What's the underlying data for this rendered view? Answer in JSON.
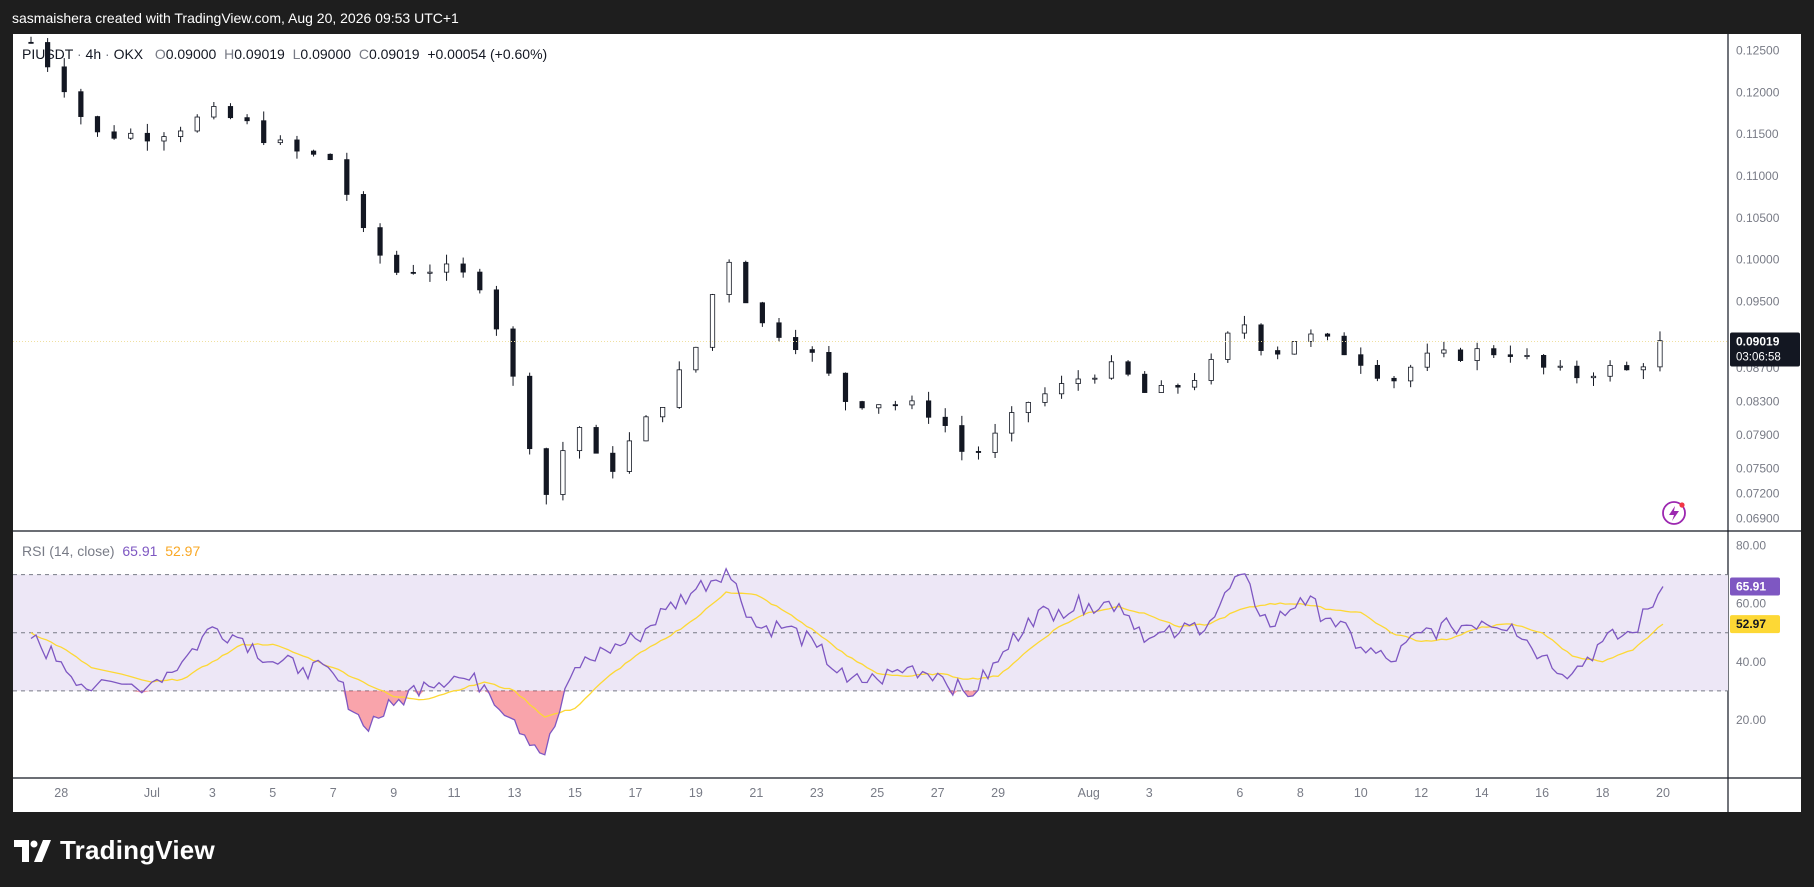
{
  "header": {
    "credit": "sasmaishera created with TradingView.com, Aug 20, 2026 09:53 UTC+1"
  },
  "legend": {
    "symbol": "PIUSDT",
    "timeframe": "4h",
    "exchange": "OKX",
    "open_label": "O",
    "open": "0.09000",
    "high_label": "H",
    "high": "0.09019",
    "low_label": "L",
    "low": "0.09000",
    "close_label": "C",
    "close": "0.09019",
    "change": "+0.00054 (+0.60%)"
  },
  "rsi_legend": {
    "name": "RSI (14, close)",
    "rsi_value": "65.91",
    "ma_value": "52.97"
  },
  "price_tag": {
    "price": "0.09019",
    "countdown": "03:06:58"
  },
  "footer": {
    "brand": "TradingView"
  },
  "colors": {
    "rsi_line": "#7e57c2",
    "rsi_ma": "#fdd835",
    "rsi_band": "#ede7f6",
    "oversold_fill": "#f23645",
    "candle_up": "#ffffff",
    "candle_down": "#131722"
  },
  "chart_data": [
    {
      "type": "candlestick",
      "title": "PIUSDT · 4h · OKX",
      "y_ticks": [
        "0.12500",
        "0.12000",
        "0.11500",
        "0.11000",
        "0.10500",
        "0.10000",
        "0.09500",
        "0.09000",
        "0.08700",
        "0.08300",
        "0.07900",
        "0.07500",
        "0.07200",
        "0.06900"
      ],
      "x_ticks": [
        "28",
        "Jul",
        "3",
        "5",
        "7",
        "9",
        "11",
        "13",
        "15",
        "17",
        "19",
        "21",
        "23",
        "25",
        "27",
        "29",
        "Aug",
        "3",
        "6",
        "8",
        "10",
        "12",
        "14",
        "16",
        "18",
        "20"
      ],
      "ylim": [
        0.0675,
        0.127
      ],
      "close_path": [
        {
          "x": "Jun 27",
          "y": 0.126
        },
        {
          "x": "Jun 28",
          "y": 0.1215
        },
        {
          "x": "Jun 29",
          "y": 0.115
        },
        {
          "x": "Jul 1",
          "y": 0.115
        },
        {
          "x": "Jul 2",
          "y": 0.116
        },
        {
          "x": "Jul 3",
          "y": 0.1175
        },
        {
          "x": "Jul 4",
          "y": 0.1165
        },
        {
          "x": "Jul 5",
          "y": 0.114
        },
        {
          "x": "Jul 6",
          "y": 0.1125
        },
        {
          "x": "Jul 7",
          "y": 0.112
        },
        {
          "x": "Jul 8",
          "y": 0.103
        },
        {
          "x": "Jul 9",
          "y": 0.0985
        },
        {
          "x": "Jul 10",
          "y": 0.099
        },
        {
          "x": "Jul 11",
          "y": 0.0985
        },
        {
          "x": "Jul 12",
          "y": 0.097
        },
        {
          "x": "Jul 13",
          "y": 0.085
        },
        {
          "x": "Jul 14",
          "y": 0.0715
        },
        {
          "x": "Jul 15",
          "y": 0.081
        },
        {
          "x": "Jul 16",
          "y": 0.074
        },
        {
          "x": "Jul 17",
          "y": 0.079
        },
        {
          "x": "Jul 18",
          "y": 0.0835
        },
        {
          "x": "Jul 19",
          "y": 0.0895
        },
        {
          "x": "Jul 20",
          "y": 0.101
        },
        {
          "x": "Jul 21",
          "y": 0.0925
        },
        {
          "x": "Jul 22",
          "y": 0.091
        },
        {
          "x": "Jul 23",
          "y": 0.088
        },
        {
          "x": "Jul 24",
          "y": 0.083
        },
        {
          "x": "Jul 25",
          "y": 0.083
        },
        {
          "x": "Jul 26",
          "y": 0.0825
        },
        {
          "x": "Jul 27",
          "y": 0.0815
        },
        {
          "x": "Jul 28",
          "y": 0.076
        },
        {
          "x": "Jul 29",
          "y": 0.079
        },
        {
          "x": "Jul 30",
          "y": 0.083
        },
        {
          "x": "Jul 31",
          "y": 0.0845
        },
        {
          "x": "Aug 1",
          "y": 0.0865
        },
        {
          "x": "Aug 2",
          "y": 0.087
        },
        {
          "x": "Aug 3",
          "y": 0.0835
        },
        {
          "x": "Aug 4",
          "y": 0.085
        },
        {
          "x": "Aug 5",
          "y": 0.087
        },
        {
          "x": "Aug 6",
          "y": 0.093
        },
        {
          "x": "Aug 7",
          "y": 0.0885
        },
        {
          "x": "Aug 8",
          "y": 0.091
        },
        {
          "x": "Aug 9",
          "y": 0.09
        },
        {
          "x": "Aug 10",
          "y": 0.088
        },
        {
          "x": "Aug 11",
          "y": 0.0855
        },
        {
          "x": "Aug 12",
          "y": 0.088
        },
        {
          "x": "Aug 13",
          "y": 0.0885
        },
        {
          "x": "Aug 14",
          "y": 0.089
        },
        {
          "x": "Aug 15",
          "y": 0.089
        },
        {
          "x": "Aug 16",
          "y": 0.087
        },
        {
          "x": "Aug 17",
          "y": 0.086
        },
        {
          "x": "Aug 18",
          "y": 0.087
        },
        {
          "x": "Aug 19",
          "y": 0.0865
        },
        {
          "x": "Aug 20",
          "y": 0.0902
        }
      ],
      "last_price": 0.09019
    },
    {
      "type": "line",
      "title": "RSI (14, close)",
      "y_ticks": [
        "80.00",
        "60.00",
        "40.00",
        "20.00"
      ],
      "ylim": [
        0,
        85
      ],
      "bands": {
        "upper": 70,
        "middle": 50,
        "lower": 30
      },
      "series": [
        {
          "name": "RSI",
          "values": [
            {
              "x": "Jun 27",
              "y": 48
            },
            {
              "x": "Jun 28",
              "y": 40
            },
            {
              "x": "Jun 29",
              "y": 30
            },
            {
              "x": "Jul 1",
              "y": 33
            },
            {
              "x": "Jul 2",
              "y": 40
            },
            {
              "x": "Jul 3",
              "y": 52
            },
            {
              "x": "Jul 4",
              "y": 48
            },
            {
              "x": "Jul 5",
              "y": 40
            },
            {
              "x": "Jul 6",
              "y": 38
            },
            {
              "x": "Jul 7",
              "y": 36
            },
            {
              "x": "Jul 8",
              "y": 18
            },
            {
              "x": "Jul 9",
              "y": 25
            },
            {
              "x": "Jul 10",
              "y": 33
            },
            {
              "x": "Jul 11",
              "y": 35
            },
            {
              "x": "Jul 12",
              "y": 32
            },
            {
              "x": "Jul 13",
              "y": 20
            },
            {
              "x": "Jul 14",
              "y": 8
            },
            {
              "x": "Jul 15",
              "y": 38
            },
            {
              "x": "Jul 16",
              "y": 44
            },
            {
              "x": "Jul 17",
              "y": 48
            },
            {
              "x": "Jul 18",
              "y": 58
            },
            {
              "x": "Jul 19",
              "y": 65
            },
            {
              "x": "Jul 20",
              "y": 72
            },
            {
              "x": "Jul 21",
              "y": 52
            },
            {
              "x": "Jul 22",
              "y": 52
            },
            {
              "x": "Jul 23",
              "y": 45
            },
            {
              "x": "Jul 24",
              "y": 33
            },
            {
              "x": "Jul 25",
              "y": 34
            },
            {
              "x": "Jul 26",
              "y": 38
            },
            {
              "x": "Jul 27",
              "y": 36
            },
            {
              "x": "Jul 28",
              "y": 28
            },
            {
              "x": "Jul 29",
              "y": 40
            },
            {
              "x": "Jul 30",
              "y": 55
            },
            {
              "x": "Jul 31",
              "y": 58
            },
            {
              "x": "Aug 1",
              "y": 60
            },
            {
              "x": "Aug 2",
              "y": 60
            },
            {
              "x": "Aug 3",
              "y": 48
            },
            {
              "x": "Aug 4",
              "y": 50
            },
            {
              "x": "Aug 5",
              "y": 54
            },
            {
              "x": "Aug 6",
              "y": 70
            },
            {
              "x": "Aug 7",
              "y": 52
            },
            {
              "x": "Aug 8",
              "y": 62
            },
            {
              "x": "Aug 9",
              "y": 55
            },
            {
              "x": "Aug 10",
              "y": 45
            },
            {
              "x": "Aug 11",
              "y": 40
            },
            {
              "x": "Aug 12",
              "y": 50
            },
            {
              "x": "Aug 13",
              "y": 52
            },
            {
              "x": "Aug 14",
              "y": 54
            },
            {
              "x": "Aug 15",
              "y": 53
            },
            {
              "x": "Aug 16",
              "y": 42
            },
            {
              "x": "Aug 17",
              "y": 36
            },
            {
              "x": "Aug 18",
              "y": 47
            },
            {
              "x": "Aug 19",
              "y": 50
            },
            {
              "x": "Aug 20",
              "y": 65.91
            }
          ]
        },
        {
          "name": "RSI-based MA",
          "values": [
            {
              "x": "Jun 27",
              "y": 50
            },
            {
              "x": "Jun 28",
              "y": 45
            },
            {
              "x": "Jun 29",
              "y": 38
            },
            {
              "x": "Jul 1",
              "y": 33
            },
            {
              "x": "Jul 2",
              "y": 34
            },
            {
              "x": "Jul 3",
              "y": 40
            },
            {
              "x": "Jul 4",
              "y": 46
            },
            {
              "x": "Jul 5",
              "y": 46
            },
            {
              "x": "Jul 6",
              "y": 42
            },
            {
              "x": "Jul 7",
              "y": 38
            },
            {
              "x": "Jul 8",
              "y": 33
            },
            {
              "x": "Jul 9",
              "y": 28
            },
            {
              "x": "Jul 10",
              "y": 27
            },
            {
              "x": "Jul 11",
              "y": 30
            },
            {
              "x": "Jul 12",
              "y": 33
            },
            {
              "x": "Jul 13",
              "y": 30
            },
            {
              "x": "Jul 14",
              "y": 21
            },
            {
              "x": "Jul 15",
              "y": 24
            },
            {
              "x": "Jul 16",
              "y": 34
            },
            {
              "x": "Jul 17",
              "y": 42
            },
            {
              "x": "Jul 18",
              "y": 48
            },
            {
              "x": "Jul 19",
              "y": 55
            },
            {
              "x": "Jul 20",
              "y": 64
            },
            {
              "x": "Jul 21",
              "y": 63
            },
            {
              "x": "Jul 22",
              "y": 57
            },
            {
              "x": "Jul 23",
              "y": 50
            },
            {
              "x": "Jul 24",
              "y": 42
            },
            {
              "x": "Jul 25",
              "y": 36
            },
            {
              "x": "Jul 26",
              "y": 35
            },
            {
              "x": "Jul 27",
              "y": 36
            },
            {
              "x": "Jul 28",
              "y": 34
            },
            {
              "x": "Jul 29",
              "y": 35
            },
            {
              "x": "Jul 30",
              "y": 44
            },
            {
              "x": "Jul 31",
              "y": 52
            },
            {
              "x": "Aug 1",
              "y": 57
            },
            {
              "x": "Aug 2",
              "y": 59
            },
            {
              "x": "Aug 3",
              "y": 56
            },
            {
              "x": "Aug 4",
              "y": 52
            },
            {
              "x": "Aug 5",
              "y": 53
            },
            {
              "x": "Aug 6",
              "y": 58
            },
            {
              "x": "Aug 7",
              "y": 60
            },
            {
              "x": "Aug 8",
              "y": 60
            },
            {
              "x": "Aug 9",
              "y": 58
            },
            {
              "x": "Aug 10",
              "y": 57
            },
            {
              "x": "Aug 11",
              "y": 50
            },
            {
              "x": "Aug 12",
              "y": 47
            },
            {
              "x": "Aug 13",
              "y": 48
            },
            {
              "x": "Aug 14",
              "y": 52
            },
            {
              "x": "Aug 15",
              "y": 53
            },
            {
              "x": "Aug 16",
              "y": 50
            },
            {
              "x": "Aug 17",
              "y": 42
            },
            {
              "x": "Aug 18",
              "y": 40
            },
            {
              "x": "Aug 19",
              "y": 44
            },
            {
              "x": "Aug 20",
              "y": 52.97
            }
          ]
        }
      ]
    }
  ]
}
